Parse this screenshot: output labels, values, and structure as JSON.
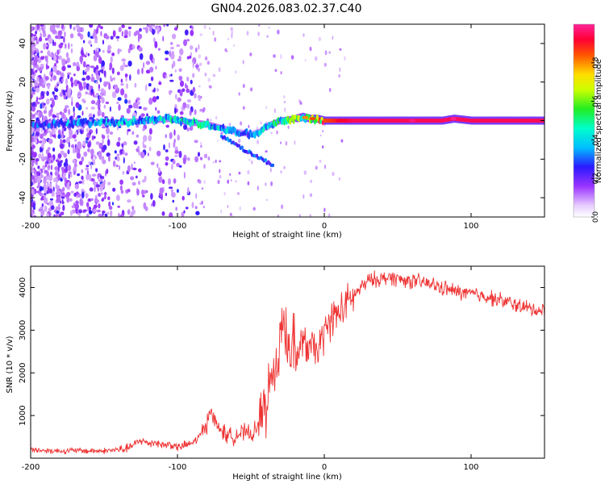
{
  "title": "GN04.2026.083.02.37.C40",
  "chart_data": [
    {
      "type": "heatmap",
      "title": "GN04.2026.083.02.37.C40",
      "xlabel": "Height of straight line (km)",
      "ylabel": "Frequency (Hz)",
      "xlim": [
        -200,
        150
      ],
      "ylim": [
        -50,
        50
      ],
      "xticks": [
        -200,
        -100,
        0,
        100
      ],
      "yticks": [
        -40,
        -20,
        0,
        20,
        40
      ],
      "colorbar": {
        "label": "Normalized spectral amplitude",
        "range": [
          0.0,
          1.0
        ],
        "ticks": [
          "0.0",
          "0.2",
          "0.4",
          "0.6",
          "0.8"
        ]
      },
      "ridge": {
        "x": [
          -200,
          -180,
          -160,
          -140,
          -120,
          -105,
          -100,
          -90,
          -80,
          -70,
          -60,
          -50,
          -45,
          -40,
          -30,
          -20,
          -15,
          -10,
          -5,
          0,
          20,
          50,
          80,
          88,
          100,
          130,
          150
        ],
        "freq": [
          -2,
          -1.5,
          -1,
          -1,
          0,
          1,
          0,
          -1,
          -2,
          -4,
          -6,
          -7,
          -6,
          -3,
          0,
          1,
          2,
          1,
          1,
          0,
          0,
          0,
          0,
          1,
          0,
          0,
          0
        ],
        "amplitude": [
          0.3,
          0.35,
          0.35,
          0.4,
          0.4,
          0.45,
          0.5,
          0.45,
          0.45,
          0.4,
          0.35,
          0.3,
          0.4,
          0.45,
          0.5,
          0.6,
          0.6,
          0.6,
          0.7,
          0.85,
          0.95,
          0.95,
          0.95,
          0.95,
          0.95,
          0.95,
          0.95
        ]
      },
      "branch": {
        "x": [
          -70,
          -60,
          -55,
          -50,
          -45,
          -40,
          -35
        ],
        "freq": [
          -8,
          -12,
          -15,
          -17,
          -19,
          -21,
          -23
        ]
      }
    },
    {
      "type": "line",
      "xlabel": "Height of straight line (km)",
      "ylabel": "SNR (10 * v/v)",
      "xlim": [
        -200,
        150
      ],
      "ylim": [
        0,
        4500
      ],
      "xticks": [
        -200,
        -100,
        0,
        100
      ],
      "yticks": [
        1000,
        2000,
        3000,
        4000
      ],
      "series": [
        {
          "name": "SNR",
          "color": "#ee3333",
          "x": [
            -200,
            -190,
            -180,
            -170,
            -160,
            -150,
            -140,
            -135,
            -130,
            -125,
            -120,
            -115,
            -110,
            -105,
            -100,
            -95,
            -90,
            -85,
            -80,
            -78,
            -75,
            -70,
            -65,
            -60,
            -55,
            -50,
            -45,
            -40,
            -35,
            -30,
            -28,
            -25,
            -20,
            -15,
            -10,
            -5,
            0,
            5,
            10,
            15,
            20,
            25,
            30,
            35,
            40,
            45,
            50,
            60,
            70,
            80,
            90,
            100,
            110,
            120,
            130,
            140,
            150
          ],
          "values": [
            200,
            180,
            170,
            180,
            170,
            170,
            200,
            220,
            300,
            420,
            350,
            380,
            300,
            330,
            250,
            300,
            350,
            500,
            800,
            1200,
            850,
            650,
            500,
            550,
            600,
            550,
            700,
            1100,
            1800,
            2700,
            3500,
            2500,
            2300,
            2700,
            2600,
            2500,
            2900,
            3300,
            3400,
            3600,
            3800,
            4000,
            4150,
            4200,
            4200,
            4250,
            4200,
            4150,
            4100,
            4000,
            3900,
            3850,
            3800,
            3700,
            3600,
            3500,
            3450
          ]
        }
      ]
    }
  ]
}
